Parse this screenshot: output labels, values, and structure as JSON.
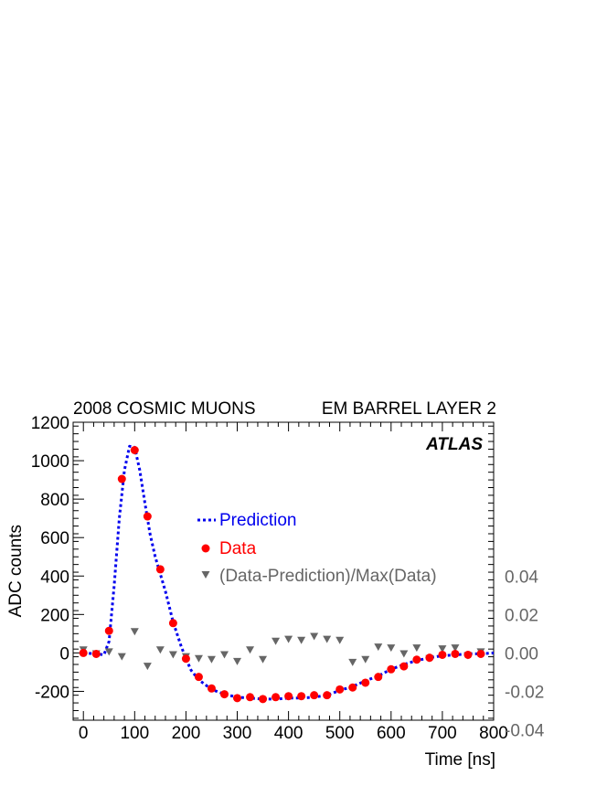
{
  "chart_data": {
    "type": "scatter",
    "title_left": "2008 COSMIC MUONS",
    "title_right": "EM BARREL LAYER 2",
    "xlabel": "Time [ns]",
    "ylabel": "ADC counts",
    "annotation": "ATLAS",
    "xlim": [
      -20,
      800
    ],
    "ylim": [
      -350,
      1200
    ],
    "xticks": [
      0,
      100,
      200,
      300,
      400,
      500,
      600,
      700,
      800
    ],
    "yticks": [
      -200,
      0,
      200,
      400,
      600,
      800,
      1000,
      1200
    ],
    "right_axis": {
      "ticks": [
        -0.04,
        -0.02,
        0.0,
        0.02,
        0.04
      ],
      "tick_labels": [
        "-0.04",
        "-0.02",
        "0.00",
        "0.02",
        "0.04"
      ],
      "units_per_adc": 0.0001
    },
    "legend_placement": "center",
    "series": [
      {
        "name": "Prediction",
        "style": "dotted-line",
        "color": "#0000ee",
        "x": [
          0,
          25,
          40,
          50,
          60,
          70,
          80,
          90,
          100,
          110,
          120,
          130,
          140,
          150,
          160,
          175,
          190,
          200,
          210,
          225,
          250,
          275,
          300,
          325,
          350,
          375,
          400,
          425,
          450,
          475,
          500,
          525,
          550,
          575,
          600,
          625,
          650,
          675,
          700,
          725,
          750,
          775,
          800
        ],
        "y": [
          0,
          -5,
          -10,
          60,
          350,
          700,
          950,
          1075,
          1070,
          950,
          780,
          620,
          500,
          410,
          320,
          160,
          40,
          -30,
          -90,
          -140,
          -190,
          -215,
          -230,
          -235,
          -240,
          -240,
          -235,
          -235,
          -230,
          -220,
          -195,
          -175,
          -145,
          -120,
          -85,
          -60,
          -40,
          -25,
          -15,
          -10,
          -5,
          -5,
          0
        ]
      },
      {
        "name": "Data",
        "style": "circle",
        "color": "#ff0000",
        "x": [
          0,
          25,
          50,
          75,
          100,
          125,
          150,
          175,
          200,
          225,
          250,
          275,
          300,
          325,
          350,
          375,
          400,
          425,
          450,
          475,
          500,
          525,
          550,
          575,
          600,
          625,
          650,
          675,
          700,
          725,
          750,
          775
        ],
        "y": [
          0,
          -5,
          115,
          905,
          1055,
          710,
          435,
          155,
          -30,
          -125,
          -185,
          -215,
          -235,
          -230,
          -240,
          -230,
          -225,
          -225,
          -220,
          -220,
          -190,
          -180,
          -155,
          -125,
          -85,
          -70,
          -35,
          -25,
          -10,
          -5,
          -10,
          -5
        ]
      },
      {
        "name": "(Data-Prediction)/Max(Data)",
        "style": "triangle-down",
        "color": "#666666",
        "x": [
          0,
          25,
          50,
          75,
          100,
          125,
          150,
          175,
          200,
          225,
          250,
          275,
          300,
          325,
          350,
          375,
          400,
          425,
          450,
          475,
          500,
          525,
          550,
          575,
          600,
          625,
          650,
          675,
          700,
          725,
          750,
          775
        ],
        "y": [
          0.0015,
          -0.0005,
          0.0005,
          -0.002,
          0.011,
          -0.007,
          0.0015,
          -0.001,
          -0.002,
          -0.003,
          -0.0035,
          -0.001,
          -0.0045,
          0.0015,
          -0.0035,
          0.006,
          0.007,
          0.0065,
          0.0085,
          0.007,
          0.0065,
          -0.005,
          -0.0035,
          0.003,
          0.0025,
          -0.0005,
          0.0025,
          -0.003,
          0.002,
          0.0025,
          -0.0015,
          0.0005
        ]
      }
    ]
  }
}
